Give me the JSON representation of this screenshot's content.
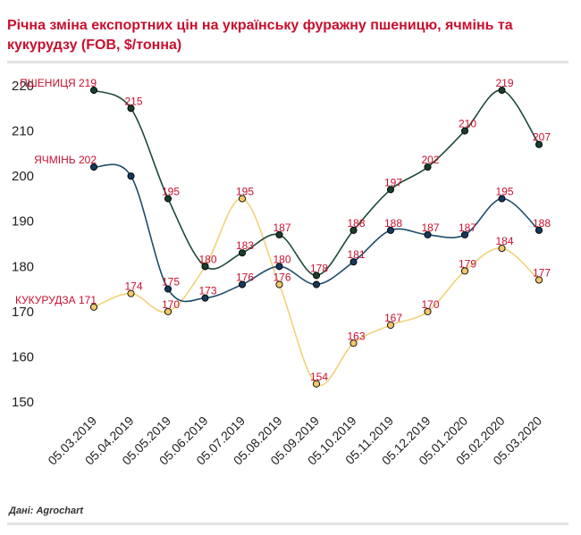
{
  "title": "Річна зміна експортних цін на українську фуражну пшеницю, ячмінь та кукурудзу (FOB, $/тонна)",
  "source": "Дані: Agrochart",
  "chart_data": {
    "type": "line",
    "title": "Річна зміна експортних цін на українську фуражну пшеницю, ячмінь та кукурудзу (FOB, $/тонна)",
    "categories": [
      "05.03.2019",
      "05.04.2019",
      "05.05.2019",
      "05.06.2019",
      "05.07.2019",
      "05.08.2019",
      "05.09.2019",
      "05.10.2019",
      "05.11.2019",
      "05.12.2019",
      "05.01.2020",
      "05.02.2020",
      "05.03.2020"
    ],
    "ylim": [
      150,
      220
    ],
    "yticks": [
      150,
      160,
      170,
      180,
      190,
      200,
      210,
      220
    ],
    "grid": false,
    "legend": "none",
    "series": [
      {
        "name": "ПШЕНИЦЯ",
        "color": "#1e4a35",
        "marker": "#1a3d2b",
        "values": [
          219,
          215,
          195,
          180,
          183,
          187,
          178,
          188,
          197,
          202,
          210,
          219,
          207
        ],
        "labels": [
          "ПШЕНИЦЯ 219",
          "215",
          "195",
          "180",
          "183",
          "187",
          "178",
          "188",
          "197",
          "202",
          "210",
          "219",
          "207"
        ]
      },
      {
        "name": "ЯЧМІНЬ",
        "color": "#1e4d6b",
        "marker": "#16385a",
        "values": [
          202,
          200,
          175,
          173,
          176,
          180,
          176,
          181,
          188,
          187,
          187,
          195,
          188
        ],
        "labels": [
          "ЯЧМІНЬ 202",
          "",
          "175",
          "173",
          "176",
          "180",
          "",
          "181",
          "188",
          "187",
          "187",
          "195",
          "188"
        ]
      },
      {
        "name": "КУКУРУДЗА",
        "color": "#f1d27a",
        "marker": "#f3c86a",
        "values": [
          171,
          174,
          170,
          180,
          195,
          176,
          154,
          163,
          167,
          170,
          179,
          184,
          177
        ],
        "labels": [
          "КУКУРУДЗА 171",
          "174",
          "170",
          "",
          "195",
          "176",
          "154",
          "163",
          "167",
          "170",
          "179",
          "184",
          "177"
        ]
      }
    ]
  }
}
